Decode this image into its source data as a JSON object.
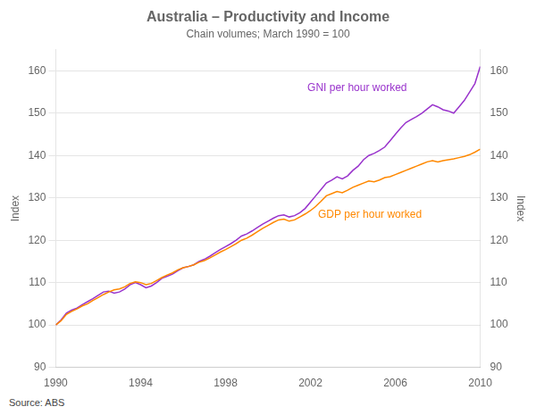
{
  "chart_data": {
    "type": "line",
    "title": "Australia – Productivity and Income",
    "subtitle": "Chain volumes; March 1990 = 100",
    "y_label": "Index",
    "y2_label": "Index",
    "source": "Source: ABS",
    "x": [
      1990.0,
      1990.25,
      1990.5,
      1990.75,
      1991.0,
      1991.25,
      1991.5,
      1991.75,
      1992.0,
      1992.25,
      1992.5,
      1992.75,
      1993.0,
      1993.25,
      1993.5,
      1993.75,
      1994.0,
      1994.25,
      1994.5,
      1994.75,
      1995.0,
      1995.25,
      1995.5,
      1995.75,
      1996.0,
      1996.25,
      1996.5,
      1996.75,
      1997.0,
      1997.25,
      1997.5,
      1997.75,
      1998.0,
      1998.25,
      1998.5,
      1998.75,
      1999.0,
      1999.25,
      1999.5,
      1999.75,
      2000.0,
      2000.25,
      2000.5,
      2000.75,
      2001.0,
      2001.25,
      2001.5,
      2001.75,
      2002.0,
      2002.25,
      2002.5,
      2002.75,
      2003.0,
      2003.25,
      2003.5,
      2003.75,
      2004.0,
      2004.25,
      2004.5,
      2004.75,
      2005.0,
      2005.25,
      2005.5,
      2005.75,
      2006.0,
      2006.25,
      2006.5,
      2006.75,
      2007.0,
      2007.25,
      2007.5,
      2007.75,
      2008.0,
      2008.25,
      2008.5,
      2008.75,
      2009.0,
      2009.25,
      2009.5,
      2009.75,
      2010.0
    ],
    "series": [
      {
        "name": "GDP per hour worked",
        "color": "#ff8800",
        "values": [
          100.0,
          101.0,
          102.5,
          103.2,
          103.8,
          104.5,
          105.0,
          105.8,
          106.5,
          107.2,
          107.8,
          108.3,
          108.5,
          109.0,
          109.8,
          110.2,
          110.0,
          109.5,
          109.8,
          110.5,
          111.2,
          111.8,
          112.3,
          113.0,
          113.5,
          113.8,
          114.2,
          114.8,
          115.2,
          115.8,
          116.5,
          117.2,
          117.8,
          118.5,
          119.2,
          120.0,
          120.5,
          121.2,
          122.0,
          122.8,
          123.5,
          124.2,
          124.8,
          125.0,
          124.5,
          124.8,
          125.5,
          126.2,
          127.0,
          128.0,
          129.2,
          130.5,
          131.0,
          131.5,
          131.2,
          131.8,
          132.5,
          133.0,
          133.5,
          134.0,
          133.8,
          134.2,
          134.8,
          135.0,
          135.5,
          136.0,
          136.5,
          137.0,
          137.5,
          138.0,
          138.5,
          138.8,
          138.5,
          138.8,
          139.0,
          139.2,
          139.5,
          139.8,
          140.2,
          140.8,
          141.5
        ]
      },
      {
        "name": "GNI per hour worked",
        "color": "#9933cc",
        "values": [
          100.0,
          101.2,
          102.8,
          103.5,
          104.0,
          104.8,
          105.5,
          106.2,
          107.0,
          107.8,
          108.0,
          107.5,
          107.8,
          108.5,
          109.5,
          110.0,
          109.5,
          108.8,
          109.2,
          110.0,
          111.0,
          111.5,
          112.0,
          112.8,
          113.5,
          113.8,
          114.2,
          115.0,
          115.5,
          116.2,
          117.0,
          117.8,
          118.5,
          119.2,
          120.0,
          121.0,
          121.5,
          122.2,
          123.0,
          123.8,
          124.5,
          125.2,
          125.8,
          126.0,
          125.5,
          125.8,
          126.5,
          127.5,
          129.0,
          130.5,
          132.0,
          133.5,
          134.2,
          135.0,
          134.5,
          135.2,
          136.5,
          137.5,
          139.0,
          140.0,
          140.5,
          141.2,
          142.0,
          143.5,
          145.0,
          146.5,
          147.8,
          148.5,
          149.2,
          150.0,
          151.0,
          152.0,
          151.5,
          150.8,
          150.5,
          150.0,
          151.5,
          153.0,
          155.0,
          157.0,
          161.0
        ]
      }
    ],
    "annotations": [
      {
        "text": "GNI per hour worked",
        "x": 2004.2,
        "y": 156,
        "color": "#9933cc"
      },
      {
        "text": "GDP per hour worked",
        "x": 2004.8,
        "y": 126,
        "color": "#ff8800"
      }
    ],
    "xlim": [
      1990,
      2010
    ],
    "xticks": [
      1990,
      1994,
      1998,
      2002,
      2006,
      2010
    ],
    "ylim": [
      90,
      165
    ],
    "yticks": [
      90,
      100,
      110,
      120,
      130,
      140,
      150,
      160
    ],
    "y2lim": [
      90,
      165
    ],
    "y2ticks": [
      90,
      100,
      110,
      120,
      130,
      140,
      150,
      160
    ],
    "grid": true,
    "legend": false
  }
}
